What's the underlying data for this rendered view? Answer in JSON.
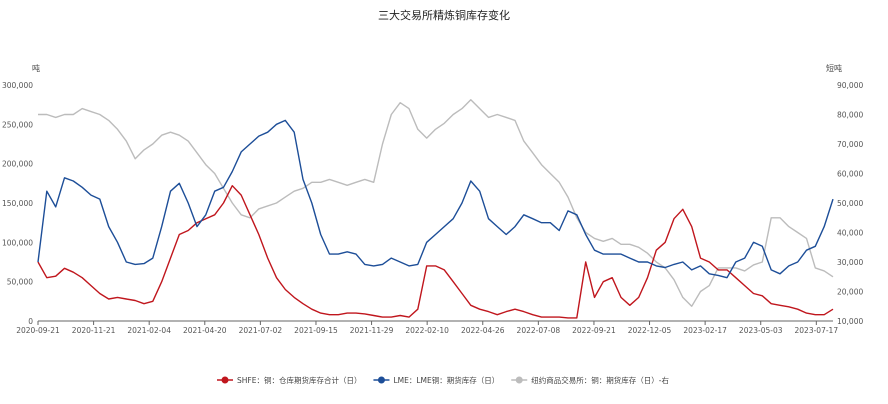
{
  "chart_data": {
    "type": "line",
    "title": "三大交易所精炼铜库存变化",
    "y_left": {
      "label": "吨",
      "ylim": [
        0,
        300000
      ],
      "ticks": [
        "0",
        "50,000",
        "100,000",
        "150,000",
        "200,000",
        "250,000",
        "300,000"
      ]
    },
    "y_right": {
      "label": "短吨",
      "ylim": [
        10000,
        90000
      ],
      "ticks": [
        "10,000",
        "20,000",
        "30,000",
        "40,000",
        "50,000",
        "60,000",
        "70,000",
        "80,000",
        "90,000"
      ]
    },
    "x_ticks": [
      "2020-09-21",
      "2020-11-21",
      "2021-02-04",
      "2021-04-20",
      "2021-07-02",
      "2021-09-15",
      "2021-11-29",
      "2022-02-10",
      "2022-04-26",
      "2022-07-08",
      "2022-09-21",
      "2022-12-05",
      "2023-02-17",
      "2023-05-03",
      "2023-07-17"
    ],
    "grid": false,
    "legend_position": "bottom",
    "series": [
      {
        "name": "SHFE：铜：仓库期货库存合计（日）",
        "axis": "left",
        "color": "#c0161d",
        "values": [
          75000,
          55000,
          57000,
          67000,
          62000,
          55000,
          45000,
          35000,
          28000,
          30000,
          28000,
          26000,
          22000,
          25000,
          50000,
          80000,
          110000,
          115000,
          125000,
          130000,
          135000,
          150000,
          172000,
          160000,
          135000,
          110000,
          80000,
          55000,
          40000,
          30000,
          22000,
          15000,
          10000,
          8000,
          8000,
          10000,
          10000,
          9000,
          7000,
          5000,
          5000,
          7000,
          5000,
          15000,
          70000,
          70000,
          65000,
          50000,
          35000,
          20000,
          15000,
          12000,
          8000,
          12000,
          15000,
          12000,
          8000,
          5000,
          5000,
          5000,
          4000,
          4000,
          75000,
          30000,
          50000,
          55000,
          30000,
          20000,
          30000,
          55000,
          90000,
          100000,
          130000,
          142000,
          120000,
          80000,
          75000,
          65000,
          65000,
          55000,
          45000,
          35000,
          32000,
          22000,
          20000,
          18000,
          15000,
          10000,
          8000,
          8000,
          15000
        ]
      },
      {
        "name": "LME：LME铜：期货库存（日）",
        "axis": "left",
        "color": "#1d4e98",
        "values": [
          75000,
          165000,
          145000,
          182000,
          178000,
          170000,
          160000,
          155000,
          120000,
          100000,
          75000,
          72000,
          73000,
          80000,
          120000,
          165000,
          175000,
          150000,
          120000,
          135000,
          165000,
          170000,
          190000,
          215000,
          225000,
          235000,
          240000,
          250000,
          255000,
          240000,
          180000,
          150000,
          110000,
          85000,
          85000,
          88000,
          85000,
          72000,
          70000,
          72000,
          80000,
          75000,
          70000,
          72000,
          100000,
          110000,
          120000,
          130000,
          150000,
          178000,
          165000,
          130000,
          120000,
          110000,
          120000,
          135000,
          130000,
          125000,
          125000,
          115000,
          140000,
          135000,
          110000,
          90000,
          85000,
          85000,
          85000,
          80000,
          75000,
          75000,
          70000,
          68000,
          72000,
          75000,
          65000,
          70000,
          60000,
          58000,
          55000,
          75000,
          80000,
          100000,
          95000,
          65000,
          60000,
          70000,
          75000,
          90000,
          95000,
          120000,
          155000
        ]
      },
      {
        "name": "纽约商品交易所：铜：期货库存（日）-右",
        "axis": "right",
        "color": "#bcbcbc",
        "values": [
          80000,
          80000,
          79000,
          80000,
          80000,
          82000,
          81000,
          80000,
          78000,
          75000,
          71000,
          65000,
          68000,
          70000,
          73000,
          74000,
          73000,
          71000,
          67000,
          63000,
          60000,
          55000,
          50000,
          46000,
          45000,
          48000,
          49000,
          50000,
          52000,
          54000,
          55000,
          57000,
          57000,
          58000,
          57000,
          56000,
          57000,
          58000,
          57000,
          70000,
          80000,
          84000,
          82000,
          75000,
          72000,
          75000,
          77000,
          80000,
          82000,
          85000,
          82000,
          79000,
          80000,
          79000,
          78000,
          71000,
          67000,
          63000,
          60000,
          57000,
          52000,
          45000,
          40000,
          38000,
          37000,
          38000,
          36000,
          36000,
          35000,
          33000,
          30000,
          28000,
          24000,
          18000,
          15000,
          20000,
          22000,
          28000,
          28000,
          28000,
          27000,
          29000,
          30000,
          45000,
          45000,
          42000,
          40000,
          38000,
          28000,
          27000,
          25000
        ]
      }
    ]
  }
}
